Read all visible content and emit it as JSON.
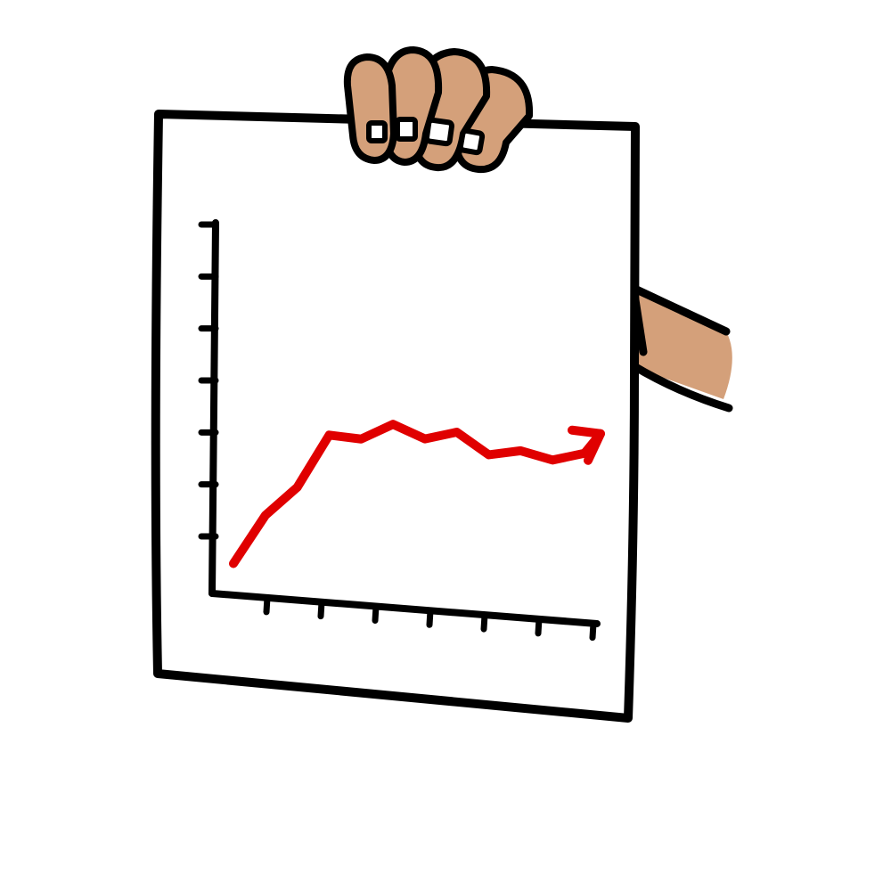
{
  "illustration": {
    "subject": "hand-holding-paper-with-rising-line-chart",
    "colors": {
      "outline": "#000000",
      "paper": "#ffffff",
      "skin": "#d4a07a",
      "nail": "#ffffff",
      "trend_line": "#e00000"
    },
    "icons": [
      "hand-icon",
      "arrow-icon"
    ]
  },
  "chart_data": {
    "type": "line",
    "title": "",
    "xlabel": "",
    "ylabel": "",
    "x_tick_count": 7,
    "y_tick_count": 7,
    "grid": false,
    "legend": "none",
    "trend": "rising",
    "series": [
      {
        "values": [
          0.25,
          2.1,
          3.2,
          5.2,
          5.1,
          5.7,
          5.2,
          5.5,
          4.7,
          4.9,
          4.6,
          4.9
        ]
      }
    ]
  }
}
